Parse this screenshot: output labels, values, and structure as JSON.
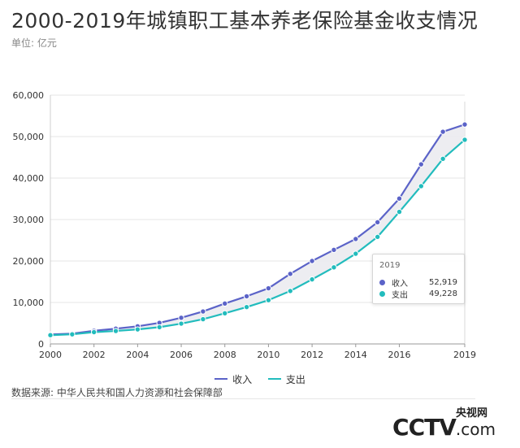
{
  "title": "2000-2019年城镇职工基本养老保险基金收支情况",
  "unit": "单位: 亿元",
  "source": "数据来源: 中华人民共和国人力资源和社会保障部",
  "logo": {
    "top": "央视网",
    "main": "CCTV",
    "suffix": ".com"
  },
  "colors": {
    "income": "#5b63c8",
    "expense": "#22bcbd",
    "band": "#ebebf0",
    "grid": "#e4e4e4"
  },
  "tooltip": {
    "year": "2019",
    "income_label": "收入",
    "income_value": "52,919",
    "expense_label": "支出",
    "expense_value": "49,228"
  },
  "chart_data": {
    "type": "line",
    "title": "2000-2019年城镇职工基本养老保险基金收支情况",
    "xlabel": "",
    "ylabel": "",
    "x": [
      2000,
      2001,
      2002,
      2003,
      2004,
      2005,
      2006,
      2007,
      2008,
      2009,
      2010,
      2011,
      2012,
      2013,
      2014,
      2015,
      2016,
      2017,
      2018,
      2019
    ],
    "x_tick_labels": [
      "2000",
      "2002",
      "2004",
      "2006",
      "2008",
      "2010",
      "2012",
      "2014",
      "2016",
      "2019"
    ],
    "y_tick_labels": [
      "0",
      "10,000",
      "20,000",
      "30,000",
      "40,000",
      "50,000",
      "60,000"
    ],
    "ylim": [
      0,
      60000
    ],
    "grid": true,
    "legend_position": "bottom",
    "series": [
      {
        "name": "收入",
        "values": [
          2278,
          2489,
          3172,
          3680,
          4258,
          5093,
          6310,
          7834,
          9740,
          11491,
          13420,
          16895,
          20001,
          22680,
          25310,
          29341,
          35058,
          43310,
          51168,
          52919
        ]
      },
      {
        "name": "支出",
        "values": [
          2115,
          2321,
          2843,
          3122,
          3502,
          4040,
          4897,
          5965,
          7390,
          8894,
          10555,
          12765,
          15562,
          18470,
          21755,
          25813,
          31854,
          38052,
          44645,
          49228
        ]
      }
    ]
  }
}
